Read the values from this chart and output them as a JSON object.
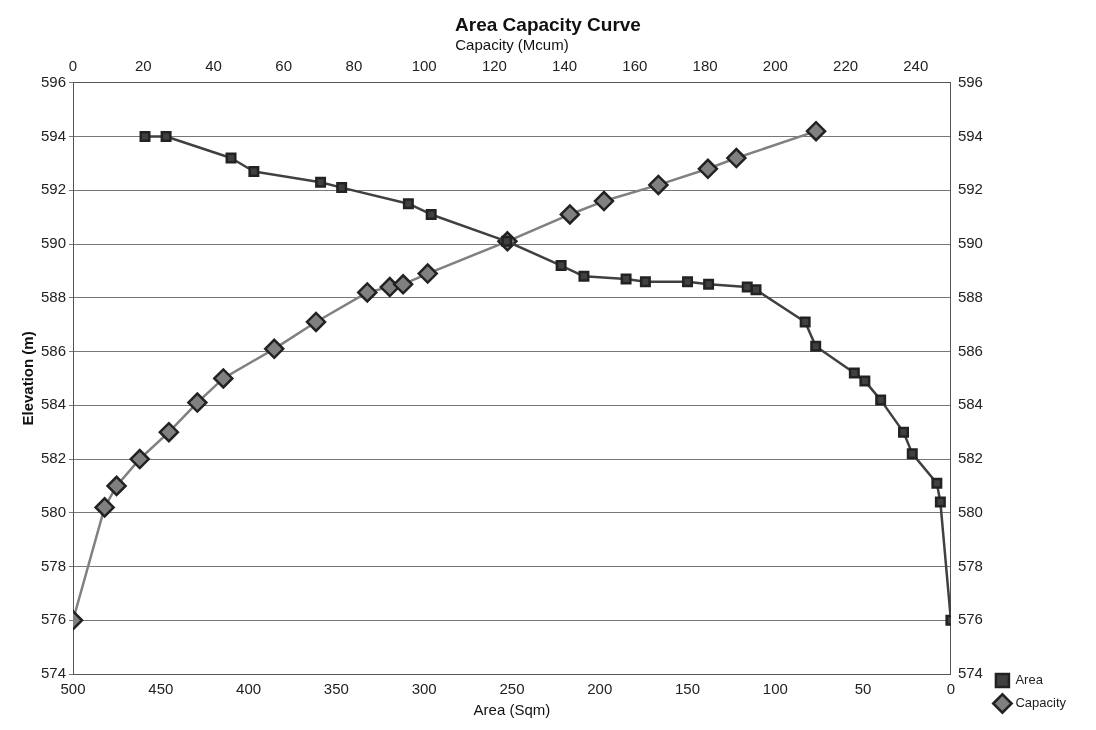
{
  "chart_data": {
    "type": "line",
    "title": "Area Capacity Curve",
    "xlabel": "Area (Sqm)",
    "x2label": "Capacity (Mcum)",
    "ylabel": "Elevation (m)",
    "xlim": [
      500,
      0
    ],
    "xticks": [
      500,
      450,
      400,
      350,
      300,
      250,
      200,
      150,
      100,
      50,
      0
    ],
    "x2lim": [
      0,
      250
    ],
    "x2ticks": [
      0,
      20,
      40,
      60,
      80,
      100,
      120,
      140,
      160,
      180,
      200,
      220,
      240
    ],
    "ylim": [
      574,
      596
    ],
    "yticks": [
      574,
      576,
      578,
      580,
      582,
      584,
      586,
      588,
      590,
      592,
      594,
      596
    ],
    "y2lim": [
      574,
      596
    ],
    "y2ticks": [
      574,
      576,
      578,
      580,
      582,
      584,
      586,
      588,
      590,
      592,
      594,
      596
    ],
    "grid": "y",
    "legend": "right",
    "line_style": "solid",
    "series": [
      {
        "name": "Area",
        "color": "#404040",
        "marker": "square",
        "x": [
          459,
          447,
          410,
          397,
          359,
          347,
          309,
          296,
          253,
          222,
          209,
          185,
          174,
          150,
          138,
          116,
          111,
          83,
          77,
          55,
          49,
          40,
          27,
          22,
          8,
          6,
          0
        ],
        "values": [
          594,
          594,
          593.2,
          592.7,
          592.3,
          592.1,
          591.5,
          591.1,
          590.1,
          589.2,
          588.8,
          588.7,
          588.6,
          588.6,
          588.5,
          588.4,
          588.3,
          587.1,
          586.2,
          585.2,
          584.9,
          584.2,
          583,
          582.2,
          581.1,
          580.4,
          576
        ]
      },
      {
        "name": "Capacity",
        "color": "#808080",
        "marker": "diamond",
        "axis": "x2",
        "x": [
          0,
          9,
          12.4,
          19,
          27.3,
          35.4,
          42.8,
          57.3,
          69.2,
          83.8,
          90.2,
          94,
          101,
          123.7,
          141.5,
          151.2,
          166.7,
          180.8,
          188.9,
          211.6
        ],
        "values": [
          576,
          580.2,
          581,
          582,
          583,
          584.1,
          585,
          586.1,
          587.1,
          588.2,
          588.4,
          588.5,
          588.9,
          590.1,
          591.1,
          591.6,
          592.2,
          592.8,
          593.2,
          594.2
        ]
      }
    ]
  }
}
